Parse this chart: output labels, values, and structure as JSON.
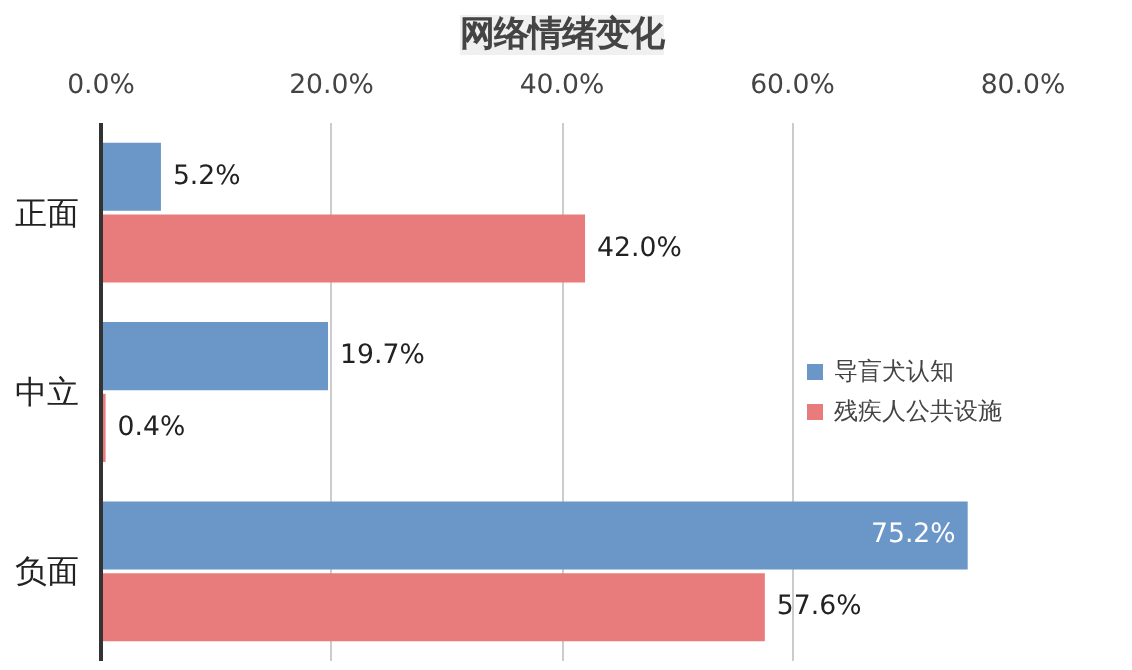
{
  "chart_data": {
    "type": "bar",
    "orientation": "horizontal",
    "title": "网络情绪变化",
    "categories": [
      "正面",
      "中立",
      "负面"
    ],
    "series": [
      {
        "name": "导盲犬认知",
        "color": "#6a96c8",
        "values": [
          5.2,
          19.7,
          75.2
        ],
        "value_labels": [
          "5.2%",
          "19.7%",
          "75.2%"
        ]
      },
      {
        "name": "残疾人公共设施",
        "color": "#e87c7c",
        "values": [
          42.0,
          0.4,
          57.6
        ],
        "value_labels": [
          "42.0%",
          "0.4%",
          "57.6%"
        ]
      }
    ],
    "xlim": [
      0,
      80
    ],
    "xticks": [
      {
        "value": 0,
        "label": "0.0%"
      },
      {
        "value": 20,
        "label": "20.0%"
      },
      {
        "value": 40,
        "label": "40.0%"
      },
      {
        "value": 60,
        "label": "60.0%"
      },
      {
        "value": 80,
        "label": "80.0%"
      }
    ],
    "grid": "x",
    "legend": "right"
  }
}
